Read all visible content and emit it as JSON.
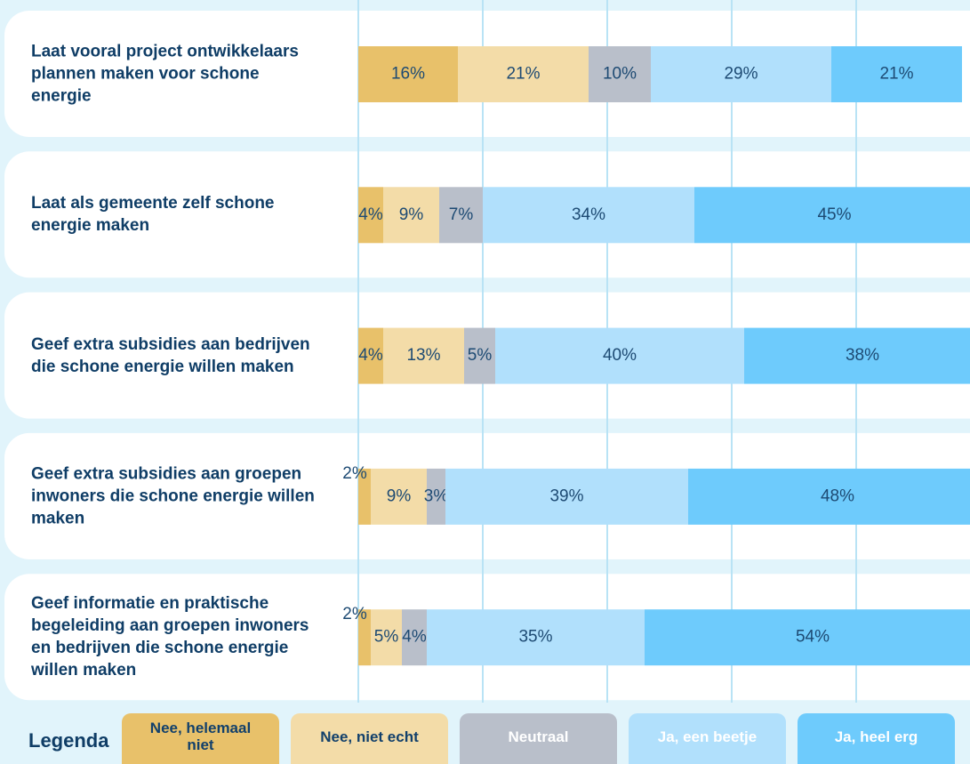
{
  "chart_data": {
    "type": "bar",
    "orientation": "horizontal",
    "stacked": true,
    "categories": [
      "Laat vooral project ontwikkelaars plannen maken voor schone energie",
      "Laat als gemeente zelf schone energie maken",
      "Geef extra subsidies aan bedrijven die schone energie willen maken",
      "Geef extra subsidies aan groepen inwoners die schone energie willen maken",
      "Geef informatie en praktische begeleiding aan groepen inwoners en bedrijven die schone energie willen maken"
    ],
    "series": [
      {
        "name": "Nee, helemaal niet",
        "color": "#e8c16a",
        "values": [
          16,
          4,
          4,
          2,
          2
        ],
        "value_labels": [
          "16%",
          "4%",
          "4%",
          "2%",
          "2%"
        ]
      },
      {
        "name": "Nee, niet echt",
        "color": "#f3dca8",
        "values": [
          21,
          9,
          13,
          9,
          5
        ],
        "value_labels": [
          "21%",
          "9%",
          "13%",
          "9%",
          "5%"
        ]
      },
      {
        "name": "Neutraal",
        "color": "#b9bfca",
        "values": [
          10,
          7,
          5,
          3,
          4
        ],
        "value_labels": [
          "10%",
          "7%",
          "5%",
          "3%",
          "4%"
        ]
      },
      {
        "name": "Ja, een beetje",
        "color": "#b1e0fc",
        "values": [
          29,
          34,
          40,
          39,
          35
        ],
        "value_labels": [
          "29%",
          "34%",
          "40%",
          "39%",
          "35%"
        ]
      },
      {
        "name": "Ja, heel erg",
        "color": "#6ecbfc",
        "values": [
          21,
          45,
          38,
          48,
          54
        ],
        "value_labels": [
          "21%",
          "45%",
          "38%",
          "48%",
          "54%"
        ]
      }
    ],
    "legend_title": "Legenda",
    "xlim": [
      0,
      100
    ],
    "xticks": [
      0,
      20,
      40,
      60,
      80
    ],
    "grid": true
  }
}
